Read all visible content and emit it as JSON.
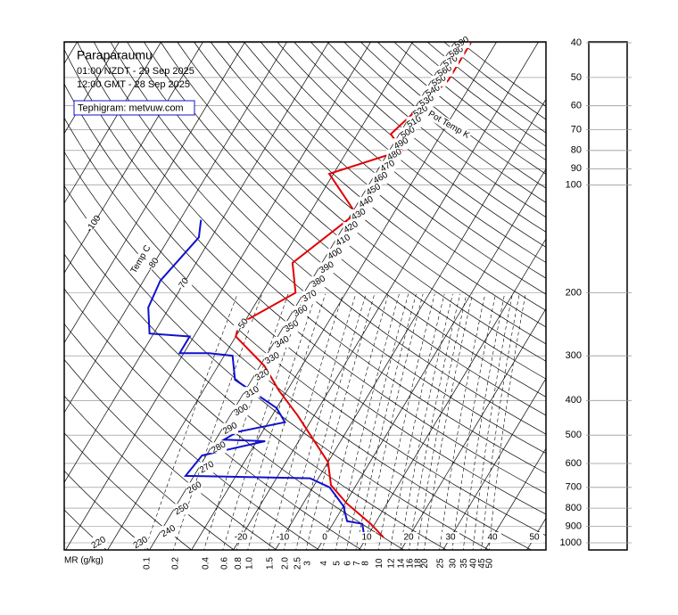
{
  "header": {
    "station": "Paraparaumu",
    "local_time": "01:00 NZDT - 29 Sep 2025",
    "utc_time": "12:00 GMT - 28 Sep 2025",
    "source": "Tephigram: metvuw.com"
  },
  "chart_data": {
    "type": "tephigram",
    "temp_axis_label": "Temp C",
    "theta_axis_label": "Pot Temp K",
    "mr_axis_label": "MR (g/kg)",
    "ylim": [
      1000,
      40
    ],
    "log_y": true,
    "yticks": [
      40,
      50,
      60,
      70,
      80,
      90,
      100,
      200,
      300,
      400,
      500,
      600,
      700,
      800,
      900,
      1000
    ],
    "temp_labels": [
      -100,
      -80,
      -70,
      -50,
      -20,
      -10,
      0,
      10,
      20,
      30,
      40,
      50
    ],
    "theta_labels": [
      220,
      230,
      240,
      250,
      260,
      270,
      280,
      290,
      300,
      310,
      320,
      330,
      340,
      350,
      360,
      370,
      380,
      390,
      400,
      410,
      420,
      430,
      440,
      450,
      460,
      470,
      480,
      490,
      500,
      510,
      520,
      530,
      540,
      550,
      560,
      570,
      580,
      590
    ],
    "mr_ticks": [
      0.1,
      0.2,
      0.4,
      0.6,
      0.8,
      {
        "value": 1,
        "label": "1.0"
      },
      1.5,
      {
        "value": 2,
        "label": "2.0"
      },
      2.5,
      3,
      4,
      5,
      6,
      7,
      8,
      10,
      12,
      14,
      16,
      18,
      20,
      25,
      30,
      35,
      40,
      45,
      50
    ],
    "series": [
      {
        "color": "#e00000",
        "pressure": [
          965,
          885,
          775,
          690,
          595,
          490,
          440,
          375,
          320,
          265,
          245,
          200,
          165,
          120,
          93,
          80,
          72,
          51,
          40
        ],
        "values": [
          14,
          9,
          0.3,
          -6,
          -10,
          -19,
          -24,
          -32,
          -39,
          -50,
          -51,
          -42,
          -47,
          -39,
          -51,
          -37,
          -42,
          -36,
          -36
        ]
      },
      {
        "color": "#1010d0",
        "pressure": [
          950,
          885,
          870,
          790,
          700,
          660,
          650,
          570,
          520,
          515,
          490,
          460,
          420,
          350,
          300,
          295,
          295,
          265,
          260,
          220,
          185,
          140,
          125
        ],
        "values": [
          9,
          7,
          3,
          0,
          -6,
          -12,
          -42,
          -41,
          -28,
          -38,
          -36,
          -26,
          -30,
          -44,
          -48,
          -54,
          -61,
          -61,
          -71,
          -75,
          -76,
          -73,
          -75
        ]
      }
    ]
  }
}
